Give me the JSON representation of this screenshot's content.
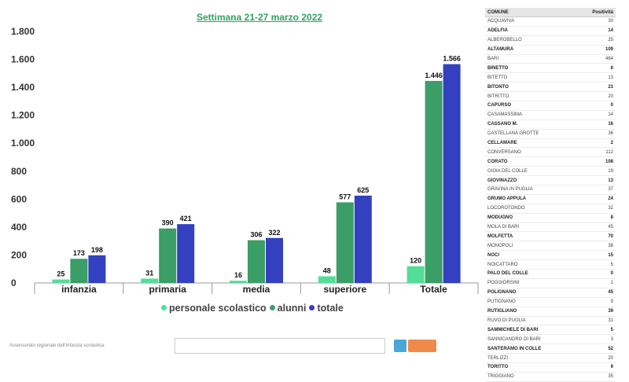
{
  "chart_data": {
    "type": "bar",
    "title": "Settimana 21-27 marzo 2022",
    "categories": [
      "infanzia",
      "primaria",
      "media",
      "superiore",
      "Totale"
    ],
    "series": [
      {
        "name": "personale scolastico",
        "color": "#52de97",
        "values": [
          25,
          31,
          16,
          48,
          120
        ],
        "labels": [
          "25",
          "31",
          "16",
          "48",
          "120"
        ]
      },
      {
        "name": "alunni",
        "color": "#3a9e66",
        "values": [
          173,
          390,
          306,
          577,
          1446
        ],
        "labels": [
          "173",
          "390",
          "306",
          "577",
          "1.446"
        ]
      },
      {
        "name": "totale",
        "color": "#3340c0",
        "values": [
          198,
          421,
          322,
          625,
          1566
        ],
        "labels": [
          "198",
          "421",
          "322",
          "625",
          "1.566"
        ]
      }
    ],
    "ylim": [
      0,
      1800
    ],
    "yticks": [
      0,
      200,
      400,
      600,
      800,
      1000,
      1200,
      1400,
      1600,
      1800
    ],
    "ytick_labels": [
      "0",
      "200",
      "400",
      "600",
      "800",
      "1.000",
      "1.200",
      "1.400",
      "1.600",
      "1.800"
    ],
    "xlabel": "",
    "ylabel": "",
    "legend_position": "bottom",
    "grid": false
  },
  "footnote": "Assessorato regionale dell'Infanzia scolastica",
  "table": {
    "headers": [
      "COMUNE",
      "Positività"
    ],
    "rows": [
      [
        "ACQUAVIVA",
        "30"
      ],
      [
        "ADELFIA",
        "14"
      ],
      [
        "ALBEROBELLO",
        "25"
      ],
      [
        "ALTAMURA",
        "109"
      ],
      [
        "BARI",
        "464"
      ],
      [
        "BINETTO",
        "6"
      ],
      [
        "BITETTO",
        "13"
      ],
      [
        "BITONTO",
        "21"
      ],
      [
        "BITRITTO",
        "20"
      ],
      [
        "CAPURSO",
        "0"
      ],
      [
        "CASAMASSIMA",
        "14"
      ],
      [
        "CASSANO M.",
        "16"
      ],
      [
        "CASTELLANA GROTTE",
        "36"
      ],
      [
        "CELLAMARE",
        "2"
      ],
      [
        "CONVERSANO",
        "112"
      ],
      [
        "CORATO",
        "108"
      ],
      [
        "GIOIA DEL COLLE",
        "19"
      ],
      [
        "GIOVINAZZO",
        "13"
      ],
      [
        "GRAVINA IN PUGLIA",
        "37"
      ],
      [
        "GRUMO APPULA",
        "24"
      ],
      [
        "LOCOROTONDO",
        "32"
      ],
      [
        "MODUGNO",
        "8"
      ],
      [
        "MOLA DI BARI",
        "45"
      ],
      [
        "MOLFETTA",
        "70"
      ],
      [
        "MONOPOLI",
        "38"
      ],
      [
        "NOCI",
        "15"
      ],
      [
        "NOICATTARO",
        "5"
      ],
      [
        "PALO DEL COLLE",
        "0"
      ],
      [
        "POGGIORSINI",
        "1"
      ],
      [
        "POLIGNANO",
        "45"
      ],
      [
        "PUTIGNANO",
        "9"
      ],
      [
        "RUTIGLIANO",
        "39"
      ],
      [
        "RUVO DI PUGLIA",
        "31"
      ],
      [
        "SAMMICHELE DI BARI",
        "5"
      ],
      [
        "SANNICANDRO DI BARI",
        "3"
      ],
      [
        "SANTERAMO IN COLLE",
        "52"
      ],
      [
        "TERLIZZI",
        "20"
      ],
      [
        "TORITTO",
        "9"
      ],
      [
        "TRIGGIANO",
        "35"
      ]
    ],
    "bold_rows": [
      "ADELFIA",
      "ALTAMURA",
      "BINETTO",
      "BITONTO",
      "CAPURSO",
      "CASSANO M.",
      "CELLAMARE",
      "CORATO",
      "GIOVINAZZO",
      "GRUMO APPULA",
      "MODUGNO",
      "MOLFETTA",
      "NOCI",
      "PALO DEL COLLE",
      "POLIGNANO",
      "RUTIGLIANO",
      "SAMMICHELE DI BARI",
      "SANTERAMO IN COLLE",
      "TORITTO"
    ]
  }
}
